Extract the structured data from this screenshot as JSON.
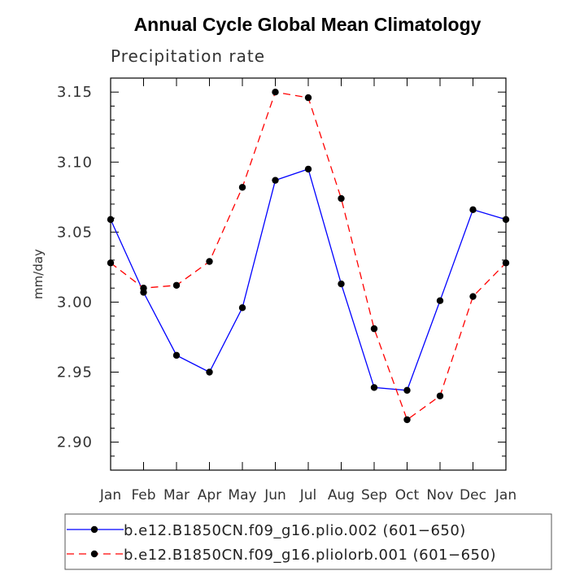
{
  "chart_data": {
    "type": "line",
    "title": "Annual Cycle Global Mean Climatology",
    "subtitle": "Precipitation rate",
    "xlabel": "",
    "ylabel": "mm/day",
    "categories": [
      "Jan",
      "Feb",
      "Mar",
      "Apr",
      "May",
      "Jun",
      "Jul",
      "Aug",
      "Sep",
      "Oct",
      "Nov",
      "Dec",
      "Jan"
    ],
    "ylim": [
      2.88,
      3.16
    ],
    "yticks": [
      2.9,
      2.95,
      3.0,
      3.05,
      3.1,
      3.15
    ],
    "ytick_labels": [
      "2.90",
      "2.95",
      "3.00",
      "3.05",
      "3.10",
      "3.15"
    ],
    "grid": false,
    "legend_position": "bottom",
    "series": [
      {
        "name": "b.e12.B1850CN.f09_g16.plio.002 (601−650)",
        "color": "#0000ff",
        "line_style": "solid",
        "marker": "filled-circle",
        "values": [
          3.059,
          3.007,
          2.962,
          2.95,
          2.996,
          3.087,
          3.095,
          3.013,
          2.939,
          2.937,
          3.001,
          3.066,
          3.059
        ]
      },
      {
        "name": "b.e12.B1850CN.f09_g16.pliolorb.001 (601−650)",
        "color": "#ff0000",
        "line_style": "dashed",
        "marker": "filled-circle",
        "values": [
          3.028,
          3.01,
          3.012,
          3.029,
          3.082,
          3.15,
          3.146,
          3.074,
          2.981,
          2.916,
          2.933,
          3.004,
          3.028
        ]
      }
    ]
  }
}
